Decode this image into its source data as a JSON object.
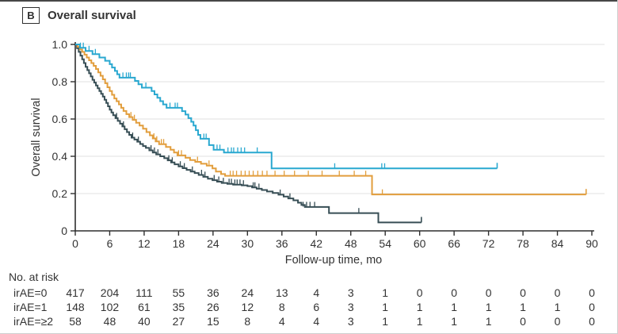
{
  "panel": {
    "letter": "B",
    "title": "Overall survival"
  },
  "chart_data": {
    "type": "line",
    "subtype": "kaplan-meier-step",
    "title": "Overall survival",
    "xlabel": "Follow-up time, mo",
    "ylabel": "Overall survival",
    "xlim": [
      0,
      90
    ],
    "xticks": [
      0,
      6,
      12,
      18,
      24,
      30,
      36,
      42,
      48,
      54,
      60,
      66,
      72,
      78,
      84,
      90
    ],
    "ylim": [
      0,
      1.0
    ],
    "yticks": [
      0,
      0.2,
      0.4,
      0.6,
      0.8,
      1.0
    ],
    "ytick_labels": [
      "0",
      "0.2",
      "0.4",
      "0.6",
      "0.8",
      "1.0"
    ],
    "grid": "horizontal",
    "legend_position": "none",
    "colors": {
      "axis": "#2f2f2f",
      "grid": "#e2e2e2",
      "text": "#333333"
    },
    "series": [
      {
        "name": "irAE=0",
        "color": "#374E55",
        "points": [
          [
            0,
            1.0
          ],
          [
            0.3,
            0.98
          ],
          [
            0.6,
            0.96
          ],
          [
            0.9,
            0.94
          ],
          [
            1.2,
            0.92
          ],
          [
            1.5,
            0.9
          ],
          [
            1.8,
            0.88
          ],
          [
            2.1,
            0.862
          ],
          [
            2.4,
            0.845
          ],
          [
            2.7,
            0.828
          ],
          [
            3,
            0.81
          ],
          [
            3.3,
            0.795
          ],
          [
            3.6,
            0.78
          ],
          [
            3.9,
            0.765
          ],
          [
            4.2,
            0.75
          ],
          [
            4.5,
            0.735
          ],
          [
            4.8,
            0.72
          ],
          [
            5.1,
            0.703
          ],
          [
            5.4,
            0.686
          ],
          [
            5.7,
            0.668
          ],
          [
            6,
            0.65
          ],
          [
            6.3,
            0.635
          ],
          [
            6.6,
            0.62
          ],
          [
            7,
            0.605
          ],
          [
            7.4,
            0.59
          ],
          [
            7.8,
            0.575
          ],
          [
            8.2,
            0.56
          ],
          [
            8.6,
            0.545
          ],
          [
            9,
            0.53
          ],
          [
            9.4,
            0.515
          ],
          [
            9.8,
            0.5
          ],
          [
            10.3,
            0.49
          ],
          [
            10.8,
            0.478
          ],
          [
            11.3,
            0.466
          ],
          [
            11.8,
            0.455
          ],
          [
            12.3,
            0.445
          ],
          [
            12.9,
            0.432
          ],
          [
            13.5,
            0.42
          ],
          [
            14.1,
            0.41
          ],
          [
            14.8,
            0.4
          ],
          [
            15.5,
            0.39
          ],
          [
            16.1,
            0.378
          ],
          [
            16.7,
            0.367
          ],
          [
            17.3,
            0.357
          ],
          [
            18,
            0.346
          ],
          [
            18.7,
            0.336
          ],
          [
            19.4,
            0.327
          ],
          [
            20.1,
            0.318
          ],
          [
            20.8,
            0.31
          ],
          [
            21.5,
            0.3
          ],
          [
            22.3,
            0.29
          ],
          [
            23.1,
            0.28
          ],
          [
            23.9,
            0.272
          ],
          [
            24.7,
            0.264
          ],
          [
            25.5,
            0.257
          ],
          [
            26.5,
            0.252
          ],
          [
            27.5,
            0.248
          ],
          [
            29,
            0.244
          ],
          [
            30,
            0.24
          ],
          [
            30.8,
            0.233
          ],
          [
            31.6,
            0.226
          ],
          [
            32.5,
            0.219
          ],
          [
            33.4,
            0.211
          ],
          [
            34.4,
            0.203
          ],
          [
            35.4,
            0.194
          ],
          [
            36.3,
            0.184
          ],
          [
            37.1,
            0.174
          ],
          [
            38,
            0.164
          ],
          [
            38.8,
            0.151
          ],
          [
            39.4,
            0.139
          ],
          [
            40,
            0.128
          ],
          [
            44.2,
            0.095
          ],
          [
            52.8,
            0.045
          ],
          [
            60.3,
            0.045
          ]
        ],
        "censors": [
          [
            7.2,
            0.605
          ],
          [
            8.4,
            0.56
          ],
          [
            10,
            0.5
          ],
          [
            11,
            0.478
          ],
          [
            13.2,
            0.432
          ],
          [
            13.8,
            0.42
          ],
          [
            14.4,
            0.41
          ],
          [
            16.3,
            0.378
          ],
          [
            16.9,
            0.367
          ],
          [
            18.3,
            0.346
          ],
          [
            19,
            0.336
          ],
          [
            20.4,
            0.318
          ],
          [
            22,
            0.3
          ],
          [
            22.6,
            0.29
          ],
          [
            24.2,
            0.272
          ],
          [
            25,
            0.264
          ],
          [
            25.8,
            0.257
          ],
          [
            26.8,
            0.252
          ],
          [
            27.2,
            0.252
          ],
          [
            27.8,
            0.248
          ],
          [
            28.2,
            0.248
          ],
          [
            28.7,
            0.248
          ],
          [
            29.3,
            0.244
          ],
          [
            31,
            0.233
          ],
          [
            31.3,
            0.233
          ],
          [
            32,
            0.226
          ],
          [
            35.7,
            0.194
          ],
          [
            37.4,
            0.174
          ],
          [
            39.7,
            0.128
          ],
          [
            40.3,
            0.128
          ],
          [
            40.9,
            0.128
          ],
          [
            41.7,
            0.128
          ],
          [
            49.4,
            0.095
          ]
        ],
        "end_tick": true
      },
      {
        "name": "irAE=1",
        "color": "#E29E3D",
        "points": [
          [
            0,
            1.0
          ],
          [
            0.4,
            0.987
          ],
          [
            0.8,
            0.973
          ],
          [
            1.2,
            0.96
          ],
          [
            1.6,
            0.945
          ],
          [
            2,
            0.93
          ],
          [
            2.4,
            0.915
          ],
          [
            2.8,
            0.9
          ],
          [
            3.2,
            0.885
          ],
          [
            3.6,
            0.868
          ],
          [
            4,
            0.85
          ],
          [
            4.4,
            0.832
          ],
          [
            4.8,
            0.813
          ],
          [
            5.2,
            0.792
          ],
          [
            5.6,
            0.77
          ],
          [
            6,
            0.75
          ],
          [
            6.4,
            0.73
          ],
          [
            6.8,
            0.71
          ],
          [
            7.2,
            0.695
          ],
          [
            7.6,
            0.678
          ],
          [
            8,
            0.66
          ],
          [
            8.4,
            0.643
          ],
          [
            8.9,
            0.626
          ],
          [
            9.4,
            0.61
          ],
          [
            10,
            0.595
          ],
          [
            10.6,
            0.58
          ],
          [
            11.2,
            0.565
          ],
          [
            11.8,
            0.548
          ],
          [
            12.4,
            0.53
          ],
          [
            13,
            0.512
          ],
          [
            13.5,
            0.496
          ],
          [
            14,
            0.48
          ],
          [
            14.6,
            0.465
          ],
          [
            15.8,
            0.45
          ],
          [
            16.6,
            0.435
          ],
          [
            17.2,
            0.42
          ],
          [
            17.8,
            0.405
          ],
          [
            19.2,
            0.392
          ],
          [
            20,
            0.38
          ],
          [
            20.9,
            0.37
          ],
          [
            21.9,
            0.36
          ],
          [
            22.9,
            0.35
          ],
          [
            23.9,
            0.335
          ],
          [
            24.5,
            0.318
          ],
          [
            25.4,
            0.305
          ],
          [
            26.1,
            0.295
          ],
          [
            51.7,
            0.195
          ],
          [
            89,
            0.195
          ]
        ],
        "censors": [
          [
            9.7,
            0.61
          ],
          [
            10.3,
            0.595
          ],
          [
            13.7,
            0.496
          ],
          [
            14.2,
            0.48
          ],
          [
            15,
            0.465
          ],
          [
            15.4,
            0.465
          ],
          [
            18,
            0.405
          ],
          [
            18.5,
            0.405
          ],
          [
            21.3,
            0.37
          ],
          [
            23.3,
            0.35
          ],
          [
            27,
            0.295
          ],
          [
            27.5,
            0.295
          ],
          [
            28.1,
            0.295
          ],
          [
            28.9,
            0.295
          ],
          [
            29.6,
            0.295
          ],
          [
            30.3,
            0.295
          ],
          [
            31,
            0.295
          ],
          [
            31.8,
            0.295
          ],
          [
            32.6,
            0.295
          ],
          [
            33.4,
            0.295
          ],
          [
            34.8,
            0.295
          ],
          [
            36.4,
            0.295
          ],
          [
            38.2,
            0.295
          ],
          [
            40.6,
            0.295
          ],
          [
            43,
            0.295
          ],
          [
            46,
            0.295
          ],
          [
            48.6,
            0.295
          ],
          [
            50.6,
            0.295
          ],
          [
            53.5,
            0.195
          ]
        ],
        "end_tick": true
      },
      {
        "name": "irAE=≥2",
        "color": "#29A8D0",
        "points": [
          [
            0,
            1.0
          ],
          [
            0.8,
            0.982
          ],
          [
            1.8,
            0.965
          ],
          [
            3,
            0.948
          ],
          [
            4.2,
            0.93
          ],
          [
            5.2,
            0.912
          ],
          [
            6,
            0.894
          ],
          [
            6.4,
            0.876
          ],
          [
            6.9,
            0.858
          ],
          [
            7.3,
            0.84
          ],
          [
            7.7,
            0.822
          ],
          [
            10.4,
            0.804
          ],
          [
            11,
            0.786
          ],
          [
            11.6,
            0.768
          ],
          [
            13.3,
            0.75
          ],
          [
            13.8,
            0.732
          ],
          [
            14.3,
            0.714
          ],
          [
            14.8,
            0.696
          ],
          [
            15.3,
            0.678
          ],
          [
            15.9,
            0.66
          ],
          [
            18.6,
            0.642
          ],
          [
            19.2,
            0.624
          ],
          [
            19.7,
            0.605
          ],
          [
            20.2,
            0.585
          ],
          [
            20.6,
            0.565
          ],
          [
            21,
            0.54
          ],
          [
            21.4,
            0.515
          ],
          [
            21.8,
            0.494
          ],
          [
            23.3,
            0.46
          ],
          [
            24.1,
            0.435
          ],
          [
            25.9,
            0.42
          ],
          [
            34.2,
            0.335
          ],
          [
            73.5,
            0.335
          ]
        ],
        "censors": [
          [
            0.9,
            0.982
          ],
          [
            1.4,
            0.982
          ],
          [
            2.4,
            0.965
          ],
          [
            3.5,
            0.948
          ],
          [
            8.3,
            0.822
          ],
          [
            8.9,
            0.822
          ],
          [
            9.3,
            0.822
          ],
          [
            9.6,
            0.822
          ],
          [
            12.3,
            0.768
          ],
          [
            16.5,
            0.66
          ],
          [
            17.4,
            0.66
          ],
          [
            17.8,
            0.66
          ],
          [
            22.4,
            0.494
          ],
          [
            22.8,
            0.494
          ],
          [
            24.7,
            0.435
          ],
          [
            25.2,
            0.435
          ],
          [
            26.6,
            0.42
          ],
          [
            27.2,
            0.42
          ],
          [
            27.6,
            0.42
          ],
          [
            28.3,
            0.42
          ],
          [
            28.9,
            0.42
          ],
          [
            29.5,
            0.42
          ],
          [
            31.7,
            0.42
          ],
          [
            45.2,
            0.335
          ],
          [
            53.4,
            0.335
          ],
          [
            53.9,
            0.335
          ]
        ],
        "end_tick": true
      }
    ]
  },
  "risk_table": {
    "title": "No. at risk",
    "times": [
      0,
      6,
      12,
      18,
      24,
      30,
      36,
      42,
      48,
      54,
      60,
      66,
      72,
      78,
      84,
      90
    ],
    "rows": [
      {
        "label": "irAE=0",
        "values": [
          417,
          204,
          111,
          55,
          36,
          24,
          13,
          4,
          3,
          1,
          0,
          0,
          0,
          0,
          0,
          0
        ]
      },
      {
        "label": "irAE=1",
        "values": [
          148,
          102,
          61,
          35,
          26,
          12,
          8,
          6,
          3,
          1,
          1,
          1,
          1,
          1,
          1,
          0
        ]
      },
      {
        "label": "irAE=≥2",
        "values": [
          58,
          48,
          40,
          27,
          15,
          8,
          4,
          4,
          3,
          1,
          1,
          1,
          1,
          0,
          0,
          0
        ]
      }
    ]
  }
}
